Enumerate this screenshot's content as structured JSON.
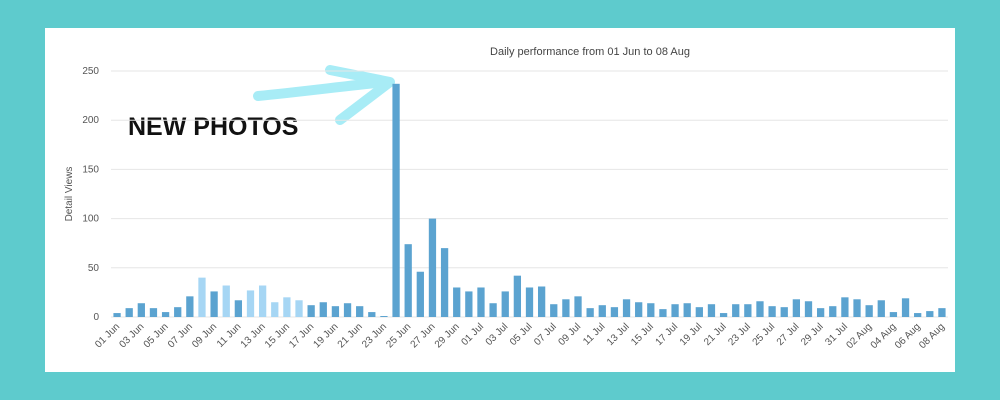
{
  "chart_data": {
    "type": "bar",
    "title": "Daily performance from 01 Jun to 08 Aug",
    "y_label": "Detail Views",
    "annotation": "NEW PHOTOS",
    "categories": [
      "01 Jun",
      null,
      "03 Jun",
      null,
      "05 Jun",
      null,
      "07 Jun",
      null,
      "09 Jun",
      null,
      "11 Jun",
      null,
      "13 Jun",
      null,
      "15 Jun",
      null,
      "17 Jun",
      null,
      "19 Jun",
      null,
      "21 Jun",
      null,
      "23 Jun",
      null,
      "25 Jun",
      null,
      "27 Jun",
      null,
      "29 Jun",
      null,
      "01 Jul",
      null,
      "03 Jul",
      null,
      "05 Jul",
      null,
      "07 Jul",
      null,
      "09 Jul",
      null,
      "11 Jul",
      null,
      "13 Jul",
      null,
      "15 Jul",
      null,
      "17 Jul",
      null,
      "19 Jul",
      null,
      "21 Jul",
      null,
      "23 Jul",
      null,
      "25 Jul",
      null,
      "27 Jul",
      null,
      "29 Jul",
      null,
      "31 Jul",
      null,
      "02 Aug",
      null,
      "04 Aug",
      null,
      "06 Aug",
      null,
      "08 Aug"
    ],
    "values": [
      4,
      9,
      14,
      9,
      5,
      10,
      21,
      40,
      26,
      32,
      17,
      27,
      32,
      15,
      20,
      17,
      12,
      15,
      11,
      14,
      11,
      5,
      1,
      237,
      74,
      46,
      100,
      70,
      30,
      26,
      30,
      14,
      26,
      42,
      30,
      31,
      13,
      18,
      21,
      9,
      12,
      10,
      18,
      15,
      14,
      8,
      13,
      14,
      10,
      13,
      4,
      13,
      13,
      16,
      11,
      10,
      18,
      16,
      9,
      11,
      20,
      18,
      12,
      17,
      5,
      19,
      4,
      6,
      9
    ],
    "colors": [
      "#5ba3d0",
      "#5ba3d0",
      "#5ba3d0",
      "#5ba3d0",
      "#5ba3d0",
      "#5ba3d0",
      "#5ba3d0",
      "#a6d6f4",
      "#5ba3d0",
      "#a6d6f4",
      "#5ba3d0",
      "#a6d6f4",
      "#a6d6f4",
      "#a6d6f4",
      "#a6d6f4",
      "#a6d6f4",
      "#5ba3d0",
      "#5ba3d0",
      "#5ba3d0",
      "#5ba3d0",
      "#5ba3d0",
      "#5ba3d0",
      "#5ba3d0",
      "#5ba3d0",
      "#5ba3d0",
      "#5ba3d0",
      "#5ba3d0",
      "#5ba3d0",
      "#5ba3d0",
      "#5ba3d0",
      "#5ba3d0",
      "#5ba3d0",
      "#5ba3d0",
      "#5ba3d0",
      "#5ba3d0",
      "#5ba3d0",
      "#5ba3d0",
      "#5ba3d0",
      "#5ba3d0",
      "#5ba3d0",
      "#5ba3d0",
      "#5ba3d0",
      "#5ba3d0",
      "#5ba3d0",
      "#5ba3d0",
      "#5ba3d0",
      "#5ba3d0",
      "#5ba3d0",
      "#5ba3d0",
      "#5ba3d0",
      "#5ba3d0",
      "#5ba3d0",
      "#5ba3d0",
      "#5ba3d0",
      "#5ba3d0",
      "#5ba3d0",
      "#5ba3d0",
      "#5ba3d0",
      "#5ba3d0",
      "#5ba3d0",
      "#5ba3d0",
      "#5ba3d0",
      "#5ba3d0",
      "#5ba3d0",
      "#5ba3d0",
      "#5ba3d0",
      "#5ba3d0",
      "#5ba3d0",
      "#5ba3d0"
    ],
    "ylim": [
      0,
      250
    ],
    "yticks": [
      0,
      50,
      100,
      150,
      200,
      250
    ],
    "grid": true
  }
}
